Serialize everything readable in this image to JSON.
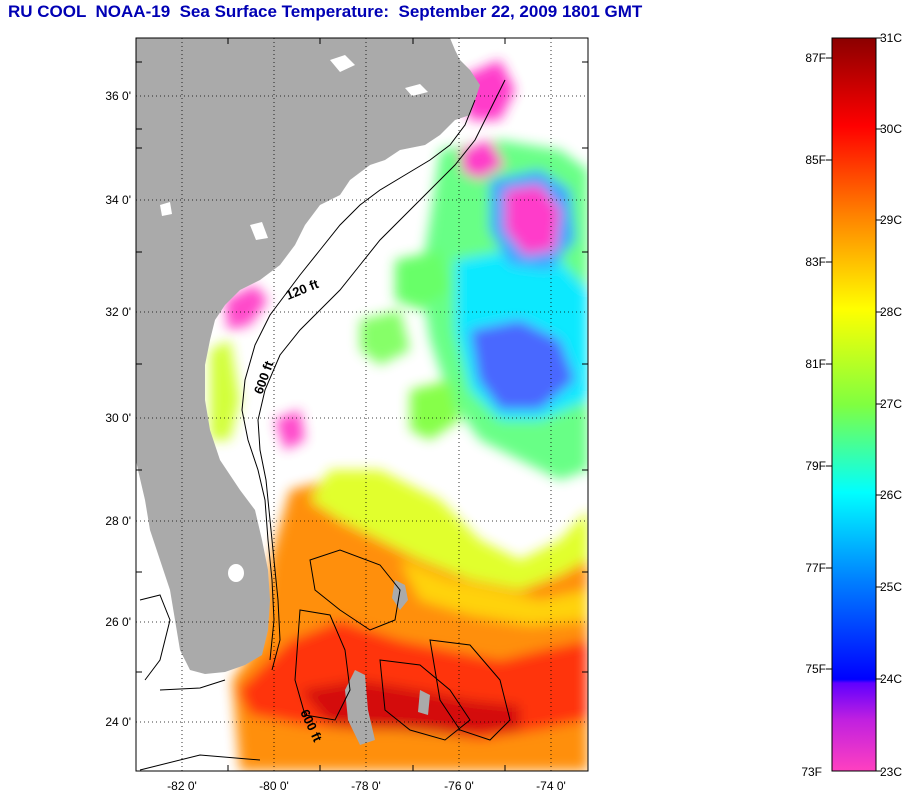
{
  "header": {
    "title": "RU COOL  NOAA-19  Sea Surface Temperature:  September 22, 2009 1801 GMT"
  },
  "map": {
    "lat_ticks": [
      "36 0'",
      "34 0'",
      "32 0'",
      "30 0'",
      "28 0'",
      "26 0'",
      "24 0'"
    ],
    "lon_ticks": [
      "-82 0'",
      "-80 0'",
      "-78 0'",
      "-76 0'",
      "-74 0'"
    ],
    "contours": {
      "label_120": "120 ft",
      "label_600": "600 ft",
      "label_600_south": "600 ft"
    }
  },
  "colorbar": {
    "fahrenheit_labels": [
      "87F",
      "85F",
      "83F",
      "81F",
      "79F",
      "77F",
      "75F",
      "73F"
    ],
    "celsius_labels": [
      "31C",
      "30C",
      "29C",
      "28C",
      "27C",
      "26C",
      "25C",
      "24C",
      "23C"
    ],
    "colors": {
      "dark_red": "#8b0000",
      "red": "#ff0000",
      "orange": "#ff8000",
      "yellow": "#ffff00",
      "green": "#80ff40",
      "cyan": "#00ffff",
      "blue": "#0000ff",
      "purple": "#8000ff",
      "magenta": "#ff40c0"
    }
  }
}
